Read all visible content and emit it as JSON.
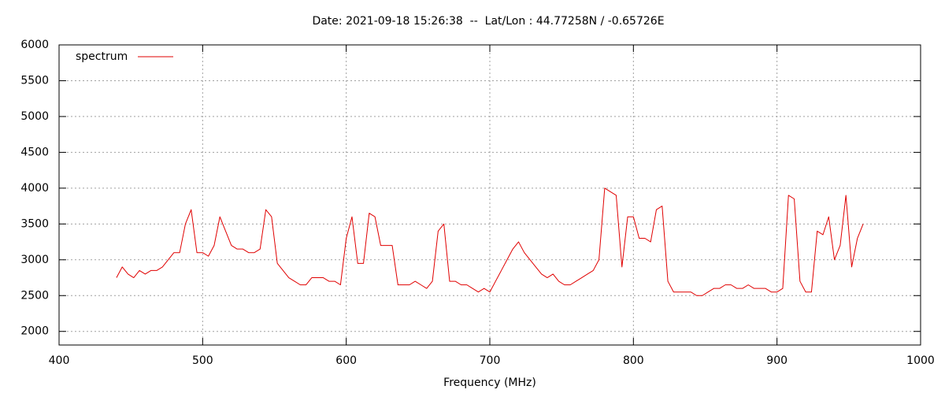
{
  "chart_data": {
    "type": "line",
    "title": "Date: 2021-09-18 15:26:38  --  Lat/Lon : 44.77258N / -0.65726E",
    "xlabel": "Frequency (MHz)",
    "xlim": [
      400,
      1000
    ],
    "xticks": [
      400,
      500,
      600,
      700,
      800,
      900,
      1000
    ],
    "ylim": [
      1810,
      6000
    ],
    "yticks": [
      2000,
      2500,
      3000,
      3500,
      4000,
      4500,
      5000,
      5500,
      6000
    ],
    "grid": true,
    "legend": "top-left",
    "x": [
      440,
      444,
      448,
      452,
      456,
      460,
      464,
      468,
      472,
      476,
      480,
      484,
      488,
      492,
      496,
      500,
      504,
      508,
      512,
      516,
      520,
      524,
      528,
      532,
      536,
      540,
      544,
      548,
      552,
      556,
      560,
      564,
      568,
      572,
      576,
      580,
      584,
      588,
      592,
      596,
      600,
      604,
      608,
      612,
      616,
      620,
      624,
      628,
      632,
      636,
      640,
      644,
      648,
      652,
      656,
      660,
      664,
      668,
      672,
      676,
      680,
      684,
      688,
      692,
      696,
      700,
      704,
      708,
      712,
      716,
      720,
      724,
      728,
      732,
      736,
      740,
      744,
      748,
      752,
      756,
      760,
      764,
      768,
      772,
      776,
      780,
      784,
      788,
      792,
      796,
      800,
      804,
      808,
      812,
      816,
      820,
      824,
      828,
      832,
      836,
      840,
      844,
      848,
      852,
      856,
      860,
      864,
      868,
      872,
      876,
      880,
      884,
      888,
      892,
      896,
      900,
      904,
      908,
      912,
      916,
      920,
      924,
      928,
      932,
      936,
      940,
      944,
      948,
      952,
      956,
      960
    ],
    "series": [
      {
        "name": "spectrum",
        "color": "#e00000",
        "values": [
          2750,
          2900,
          2800,
          2750,
          2850,
          2800,
          2850,
          2850,
          2900,
          3000,
          3100,
          3100,
          3500,
          3700,
          3100,
          3100,
          3050,
          3200,
          3600,
          3400,
          3200,
          3150,
          3150,
          3100,
          3100,
          3150,
          3700,
          3600,
          2950,
          2850,
          2750,
          2700,
          2650,
          2650,
          2750,
          2750,
          2750,
          2700,
          2700,
          2650,
          3300,
          3600,
          2950,
          2950,
          3650,
          3600,
          3200,
          3200,
          3200,
          2650,
          2650,
          2650,
          2700,
          2650,
          2600,
          2700,
          3400,
          3500,
          2700,
          2700,
          2650,
          2650,
          2600,
          2550,
          2600,
          2550,
          2700,
          2850,
          3000,
          3150,
          3250,
          3100,
          3000,
          2900,
          2800,
          2750,
          2800,
          2700,
          2650,
          2650,
          2700,
          2750,
          2800,
          2850,
          3000,
          4000,
          3950,
          3900,
          2900,
          3600,
          3600,
          3300,
          3300,
          3250,
          3700,
          3750,
          2700,
          2550,
          2550,
          2550,
          2550,
          2500,
          2500,
          2550,
          2600,
          2600,
          2650,
          2650,
          2600,
          2600,
          2650,
          2600,
          2600,
          2600,
          2550,
          2550,
          2600,
          3900,
          3850,
          2700,
          2550,
          2550,
          3400,
          3350,
          3600,
          3000,
          3200,
          3900,
          2900,
          3300,
          3500
        ]
      }
    ]
  }
}
